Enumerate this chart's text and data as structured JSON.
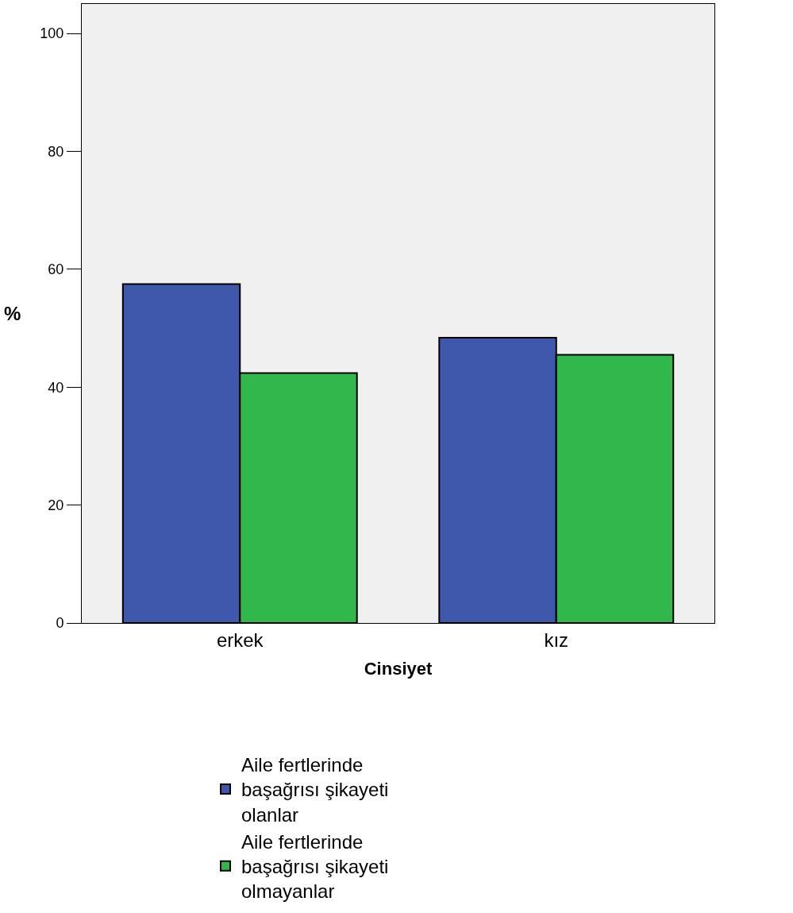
{
  "chart_data": {
    "type": "bar",
    "xlabel": "Cinsiyet",
    "ylabel": "%",
    "categories": [
      "erkek",
      "kız"
    ],
    "series": [
      {
        "name": "Aile fertlerinde başağrısı şikayeti olanlar",
        "color": "#3f58ab",
        "values": [
          57.5,
          48.4
        ]
      },
      {
        "name": "Aile fertlerinde başağrısı şikayeti olmayanlar",
        "color": "#30b84a",
        "values": [
          42.4,
          45.5
        ]
      }
    ],
    "ylim": [
      0,
      105
    ],
    "yticks": [
      0,
      20,
      40,
      60,
      80,
      100
    ],
    "grid": false,
    "legend": "bottom"
  }
}
